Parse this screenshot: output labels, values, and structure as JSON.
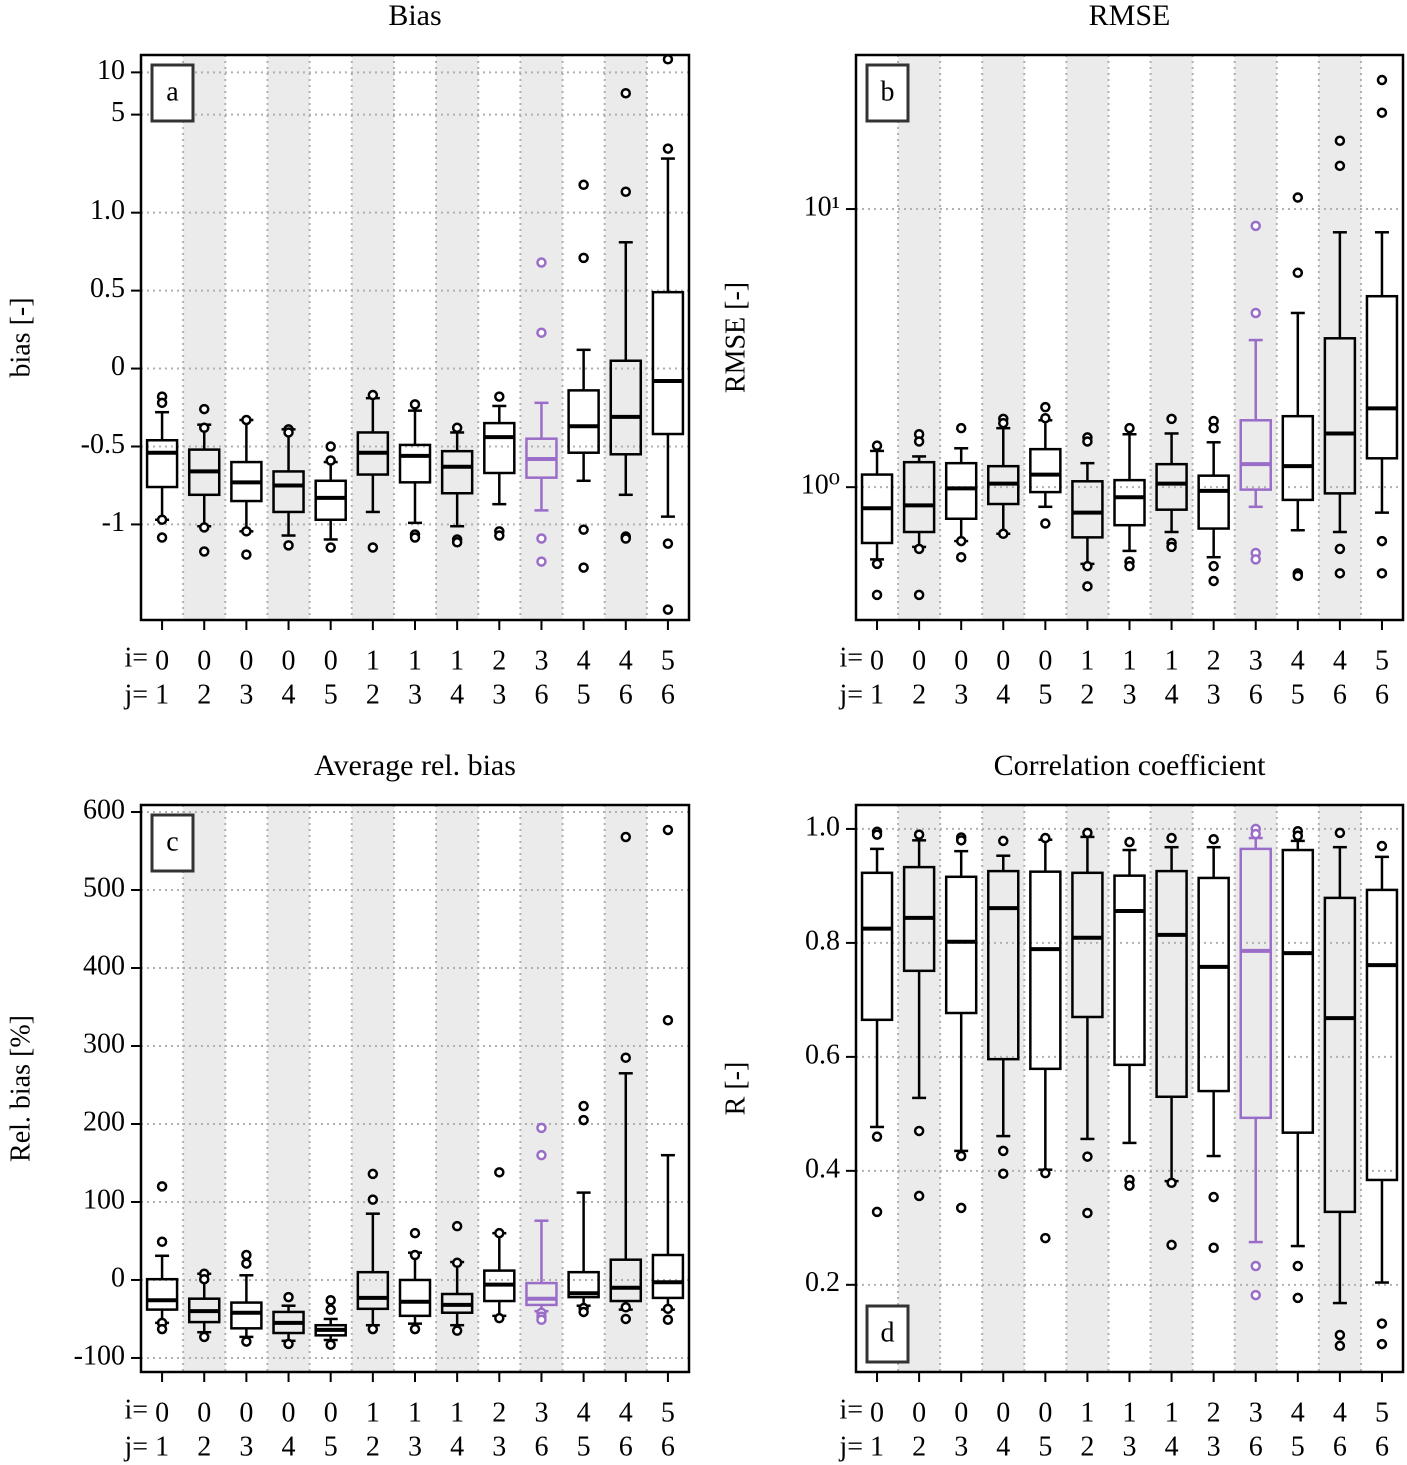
{
  "chart_data": [
    {
      "type": "box",
      "title": "Bias",
      "ylabel": "bias [-]",
      "panel_label": "a",
      "panel_label_corner": "upper left",
      "scale": "symlog",
      "linthresh": 1,
      "linscale": 1,
      "ylim": [
        -4.8,
        13.3
      ],
      "yticks": [
        -1,
        -0.5,
        0,
        0.5,
        {
          "value": 1,
          "label": "1.0"
        },
        5,
        10
      ],
      "grid": true,
      "shading": true,
      "shade_color": "#ebebeb",
      "color": "#000000",
      "row_labels": {
        "i": "i=",
        "j": "j="
      },
      "categories": [
        {
          "i": "0",
          "j": "1"
        },
        {
          "i": "0",
          "j": "2"
        },
        {
          "i": "0",
          "j": "3"
        },
        {
          "i": "0",
          "j": "4"
        },
        {
          "i": "0",
          "j": "5"
        },
        {
          "i": "1",
          "j": "2"
        },
        {
          "i": "1",
          "j": "3"
        },
        {
          "i": "1",
          "j": "4"
        },
        {
          "i": "2",
          "j": "3"
        },
        {
          "i": "3",
          "j": "6"
        },
        {
          "i": "4",
          "j": "5"
        },
        {
          "i": "4",
          "j": "6"
        },
        {
          "i": "5",
          "j": "6"
        }
      ],
      "boxes": [
        {
          "whislo": -0.97,
          "q1": -0.76,
          "median": -0.54,
          "q3": -0.46,
          "whishi": -0.28,
          "fliers": [
            -0.18,
            -0.22,
            -0.97,
            -1.24
          ]
        },
        {
          "whislo": -1.03,
          "q1": -0.81,
          "median": -0.66,
          "q3": -0.52,
          "whishi": -0.36,
          "fliers": [
            -0.26,
            -0.38,
            -1.05,
            -1.56
          ]
        },
        {
          "whislo": -1.12,
          "q1": -0.85,
          "median": -0.73,
          "q3": -0.6,
          "whishi": -0.33,
          "fliers": [
            -0.33,
            -1.12,
            -1.64
          ]
        },
        {
          "whislo": -1.2,
          "q1": -0.92,
          "median": -0.75,
          "q3": -0.66,
          "whishi": -0.39,
          "fliers": [
            -0.39,
            -0.41,
            -1.41
          ]
        },
        {
          "whislo": -1.28,
          "q1": -0.97,
          "median": -0.83,
          "q3": -0.72,
          "whishi": -0.6,
          "fliers": [
            -0.5,
            -0.59,
            -1.46
          ]
        },
        {
          "whislo": -0.92,
          "q1": -0.68,
          "median": -0.54,
          "q3": -0.41,
          "whishi": -0.19,
          "fliers": [
            -0.17,
            -1.46
          ]
        },
        {
          "whislo": -0.99,
          "q1": -0.73,
          "median": -0.56,
          "q3": -0.49,
          "whishi": -0.27,
          "fliers": [
            -0.23,
            -1.18,
            -1.24
          ]
        },
        {
          "whislo": -1.03,
          "q1": -0.8,
          "median": -0.63,
          "q3": -0.53,
          "whishi": -0.41,
          "fliers": [
            -0.38,
            -1.28,
            -1.34
          ]
        },
        {
          "whislo": -0.87,
          "q1": -0.67,
          "median": -0.44,
          "q3": -0.35,
          "whishi": -0.24,
          "fliers": [
            -0.18,
            -1.12,
            -1.2
          ]
        },
        {
          "whislo": -0.91,
          "q1": -0.7,
          "median": -0.58,
          "q3": -0.45,
          "whishi": -0.22,
          "fliers": [
            0.68,
            0.23,
            -1.26,
            -1.84
          ],
          "color": "#9a6dc8"
        },
        {
          "whislo": -0.72,
          "q1": -0.54,
          "median": -0.37,
          "q3": -0.14,
          "whishi": 0.12,
          "fliers": [
            1.58,
            0.71,
            -1.09,
            -2.03
          ]
        },
        {
          "whislo": -0.81,
          "q1": -0.55,
          "median": -0.31,
          "q3": 0.05,
          "whishi": 0.81,
          "fliers": [
            7.1,
            1.41,
            -1.22,
            -1.26
          ]
        },
        {
          "whislo": -0.95,
          "q1": -0.42,
          "median": -0.08,
          "q3": 0.49,
          "whishi": 2.43,
          "fliers": [
            12.4,
            2.86,
            -1.37,
            -4.05
          ]
        }
      ]
    },
    {
      "type": "box",
      "title": "RMSE",
      "ylabel": "RMSE [-]",
      "panel_label": "b",
      "panel_label_corner": "upper left",
      "scale": "log",
      "ylim": [
        0.333,
        35.8
      ],
      "yticks": [
        {
          "value": 1,
          "label": "10⁰"
        },
        {
          "value": 10,
          "label": "10¹"
        }
      ],
      "grid": true,
      "shading": true,
      "shade_color": "#ebebeb",
      "color": "#000000",
      "row_labels": {
        "i": "i=",
        "j": "j="
      },
      "categories": [
        {
          "i": "0",
          "j": "1"
        },
        {
          "i": "0",
          "j": "2"
        },
        {
          "i": "0",
          "j": "3"
        },
        {
          "i": "0",
          "j": "4"
        },
        {
          "i": "0",
          "j": "5"
        },
        {
          "i": "1",
          "j": "2"
        },
        {
          "i": "1",
          "j": "3"
        },
        {
          "i": "1",
          "j": "4"
        },
        {
          "i": "2",
          "j": "3"
        },
        {
          "i": "3",
          "j": "6"
        },
        {
          "i": "4",
          "j": "5"
        },
        {
          "i": "4",
          "j": "6"
        },
        {
          "i": "5",
          "j": "6"
        }
      ],
      "boxes": [
        {
          "whislo": 0.55,
          "q1": 0.63,
          "median": 0.84,
          "q3": 1.11,
          "whishi": 1.35,
          "fliers": [
            1.41,
            0.53,
            0.41
          ]
        },
        {
          "whislo": 0.61,
          "q1": 0.69,
          "median": 0.86,
          "q3": 1.23,
          "whishi": 1.29,
          "fliers": [
            1.55,
            1.46,
            0.6,
            0.41
          ]
        },
        {
          "whislo": 0.64,
          "q1": 0.77,
          "median": 0.99,
          "q3": 1.22,
          "whishi": 1.38,
          "fliers": [
            1.63,
            0.64,
            0.56
          ]
        },
        {
          "whislo": 0.68,
          "q1": 0.87,
          "median": 1.03,
          "q3": 1.19,
          "whishi": 1.63,
          "fliers": [
            1.76,
            1.7,
            0.68
          ]
        },
        {
          "whislo": 0.85,
          "q1": 0.96,
          "median": 1.11,
          "q3": 1.37,
          "whishi": 1.74,
          "fliers": [
            1.94,
            1.77,
            0.74
          ]
        },
        {
          "whislo": 0.53,
          "q1": 0.66,
          "median": 0.81,
          "q3": 1.05,
          "whishi": 1.22,
          "fliers": [
            1.51,
            1.46,
            0.52,
            0.44
          ]
        },
        {
          "whislo": 0.59,
          "q1": 0.73,
          "median": 0.92,
          "q3": 1.06,
          "whishi": 1.55,
          "fliers": [
            1.63,
            0.54,
            0.52
          ]
        },
        {
          "whislo": 0.69,
          "q1": 0.83,
          "median": 1.03,
          "q3": 1.21,
          "whishi": 1.56,
          "fliers": [
            1.76,
            0.63,
            0.61
          ]
        },
        {
          "whislo": 0.56,
          "q1": 0.71,
          "median": 0.97,
          "q3": 1.1,
          "whishi": 1.45,
          "fliers": [
            1.73,
            1.63,
            0.52,
            0.46
          ]
        },
        {
          "whislo": 0.85,
          "q1": 0.98,
          "median": 1.21,
          "q3": 1.74,
          "whishi": 3.38,
          "fliers": [
            8.7,
            4.23,
            0.58,
            0.55
          ],
          "color": "#9a6dc8"
        },
        {
          "whislo": 0.7,
          "q1": 0.9,
          "median": 1.19,
          "q3": 1.8,
          "whishi": 4.23,
          "fliers": [
            11.0,
            5.9,
            0.49,
            0.48
          ]
        },
        {
          "whislo": 0.69,
          "q1": 0.95,
          "median": 1.56,
          "q3": 3.43,
          "whishi": 8.25,
          "fliers": [
            17.6,
            14.3,
            0.6,
            0.49
          ]
        },
        {
          "whislo": 0.81,
          "q1": 1.27,
          "median": 1.92,
          "q3": 4.86,
          "whishi": 8.25,
          "fliers": [
            29.1,
            22.2,
            0.64,
            0.49
          ]
        }
      ]
    },
    {
      "type": "box",
      "title": "Average rel. bias",
      "ylabel": "Rel. bias [%]",
      "panel_label": "c",
      "panel_label_corner": "upper left",
      "scale": "linear",
      "ylim": [
        -118,
        609
      ],
      "yticks": [
        -100,
        0,
        100,
        200,
        300,
        400,
        500,
        600
      ],
      "grid": true,
      "shading": true,
      "shade_color": "#ebebeb",
      "color": "#000000",
      "row_labels": {
        "i": "i=",
        "j": "j="
      },
      "categories": [
        {
          "i": "0",
          "j": "1"
        },
        {
          "i": "0",
          "j": "2"
        },
        {
          "i": "0",
          "j": "3"
        },
        {
          "i": "0",
          "j": "4"
        },
        {
          "i": "0",
          "j": "5"
        },
        {
          "i": "1",
          "j": "2"
        },
        {
          "i": "1",
          "j": "3"
        },
        {
          "i": "1",
          "j": "4"
        },
        {
          "i": "2",
          "j": "3"
        },
        {
          "i": "3",
          "j": "6"
        },
        {
          "i": "4",
          "j": "5"
        },
        {
          "i": "4",
          "j": "6"
        },
        {
          "i": "5",
          "j": "6"
        }
      ],
      "boxes": [
        {
          "whislo": -55,
          "q1": -38,
          "median": -26,
          "q3": 1,
          "whishi": 31,
          "fliers": [
            120,
            49,
            -55,
            -63
          ]
        },
        {
          "whislo": -67,
          "q1": -54,
          "median": -40,
          "q3": -24,
          "whishi": 8,
          "fliers": [
            8,
            1,
            -73
          ]
        },
        {
          "whislo": -73,
          "q1": -62,
          "median": -42,
          "q3": -29,
          "whishi": 6,
          "fliers": [
            32,
            21,
            -79
          ]
        },
        {
          "whislo": -78,
          "q1": -68,
          "median": -55,
          "q3": -41,
          "whishi": -33,
          "fliers": [
            -22,
            -82
          ]
        },
        {
          "whislo": -77,
          "q1": -71,
          "median": -64,
          "q3": -58,
          "whishi": -50,
          "fliers": [
            -26,
            -38,
            -83
          ]
        },
        {
          "whislo": -58,
          "q1": -37,
          "median": -23,
          "q3": 10,
          "whishi": 85,
          "fliers": [
            136,
            103,
            -63
          ]
        },
        {
          "whislo": -56,
          "q1": -46,
          "median": -28,
          "q3": 0,
          "whishi": 35,
          "fliers": [
            60,
            32,
            -63
          ]
        },
        {
          "whislo": -58,
          "q1": -42,
          "median": -32,
          "q3": -18,
          "whishi": 23,
          "fliers": [
            69,
            22,
            -65
          ]
        },
        {
          "whislo": -46,
          "q1": -27,
          "median": -6,
          "q3": 12,
          "whishi": 60,
          "fliers": [
            138,
            60,
            -49
          ]
        },
        {
          "whislo": -40,
          "q1": -32,
          "median": -24,
          "q3": -4,
          "whishi": 76,
          "fliers": [
            195,
            160,
            -42,
            -47,
            -51
          ],
          "color": "#9a6dc8"
        },
        {
          "whislo": -33,
          "q1": -22,
          "median": -17,
          "q3": 10,
          "whishi": 112,
          "fliers": [
            223,
            205,
            -36,
            -41
          ]
        },
        {
          "whislo": -38,
          "q1": -27,
          "median": -10,
          "q3": 26,
          "whishi": 265,
          "fliers": [
            568,
            285,
            -35,
            -50
          ]
        },
        {
          "whislo": -38,
          "q1": -23,
          "median": -3,
          "q3": 32,
          "whishi": 160,
          "fliers": [
            577,
            333,
            -37,
            -51
          ]
        }
      ]
    },
    {
      "type": "box",
      "title": "Correlation coefficient",
      "ylabel": "R [-]",
      "panel_label": "d",
      "panel_label_corner": "lower left",
      "scale": "linear",
      "ylim": [
        0.047,
        1.042
      ],
      "yticks": [
        0.2,
        0.4,
        0.6,
        0.8,
        {
          "value": 1,
          "label": "1.0"
        }
      ],
      "grid": true,
      "shading": true,
      "shade_color": "#ebebeb",
      "color": "#000000",
      "row_labels": {
        "i": "i=",
        "j": "j="
      },
      "categories": [
        {
          "i": "0",
          "j": "1"
        },
        {
          "i": "0",
          "j": "2"
        },
        {
          "i": "0",
          "j": "3"
        },
        {
          "i": "0",
          "j": "4"
        },
        {
          "i": "0",
          "j": "5"
        },
        {
          "i": "1",
          "j": "2"
        },
        {
          "i": "1",
          "j": "3"
        },
        {
          "i": "1",
          "j": "4"
        },
        {
          "i": "2",
          "j": "3"
        },
        {
          "i": "3",
          "j": "6"
        },
        {
          "i": "4",
          "j": "5"
        },
        {
          "i": "4",
          "j": "6"
        },
        {
          "i": "5",
          "j": "6"
        }
      ],
      "boxes": [
        {
          "whislo": 0.477,
          "q1": 0.665,
          "median": 0.825,
          "q3": 0.923,
          "whishi": 0.965,
          "fliers": [
            0.995,
            0.99,
            0.46,
            0.328
          ]
        },
        {
          "whislo": 0.528,
          "q1": 0.751,
          "median": 0.844,
          "q3": 0.933,
          "whishi": 0.98,
          "fliers": [
            0.99,
            0.47,
            0.356
          ]
        },
        {
          "whislo": 0.435,
          "q1": 0.677,
          "median": 0.802,
          "q3": 0.916,
          "whishi": 0.961,
          "fliers": [
            0.985,
            0.98,
            0.426,
            0.335
          ]
        },
        {
          "whislo": 0.461,
          "q1": 0.596,
          "median": 0.861,
          "q3": 0.926,
          "whishi": 0.953,
          "fliers": [
            0.979,
            0.435,
            0.395
          ]
        },
        {
          "whislo": 0.402,
          "q1": 0.579,
          "median": 0.789,
          "q3": 0.925,
          "whishi": 0.981,
          "fliers": [
            0.984,
            0.396,
            0.282
          ]
        },
        {
          "whislo": 0.456,
          "q1": 0.67,
          "median": 0.809,
          "q3": 0.923,
          "whishi": 0.986,
          "fliers": [
            0.993,
            0.425,
            0.326
          ]
        },
        {
          "whislo": 0.449,
          "q1": 0.586,
          "median": 0.856,
          "q3": 0.918,
          "whishi": 0.963,
          "fliers": [
            0.977,
            0.384,
            0.374
          ]
        },
        {
          "whislo": 0.382,
          "q1": 0.53,
          "median": 0.814,
          "q3": 0.926,
          "whishi": 0.968,
          "fliers": [
            0.984,
            0.379,
            0.27
          ]
        },
        {
          "whislo": 0.426,
          "q1": 0.54,
          "median": 0.758,
          "q3": 0.914,
          "whishi": 0.968,
          "fliers": [
            0.982,
            0.354,
            0.265
          ]
        },
        {
          "whislo": 0.275,
          "q1": 0.493,
          "median": 0.786,
          "q3": 0.965,
          "whishi": 0.984,
          "fliers": [
            1.0,
            0.991,
            0.233,
            0.182
          ],
          "color": "#9a6dc8"
        },
        {
          "whislo": 0.268,
          "q1": 0.467,
          "median": 0.782,
          "q3": 0.963,
          "whishi": 0.979,
          "fliers": [
            0.996,
            0.988,
            0.233,
            0.177
          ]
        },
        {
          "whislo": 0.168,
          "q1": 0.328,
          "median": 0.668,
          "q3": 0.879,
          "whishi": 0.968,
          "fliers": [
            0.993,
            0.112,
            0.093
          ]
        },
        {
          "whislo": 0.204,
          "q1": 0.384,
          "median": 0.761,
          "q3": 0.893,
          "whishi": 0.951,
          "fliers": [
            0.97,
            0.132,
            0.096
          ]
        }
      ]
    }
  ]
}
